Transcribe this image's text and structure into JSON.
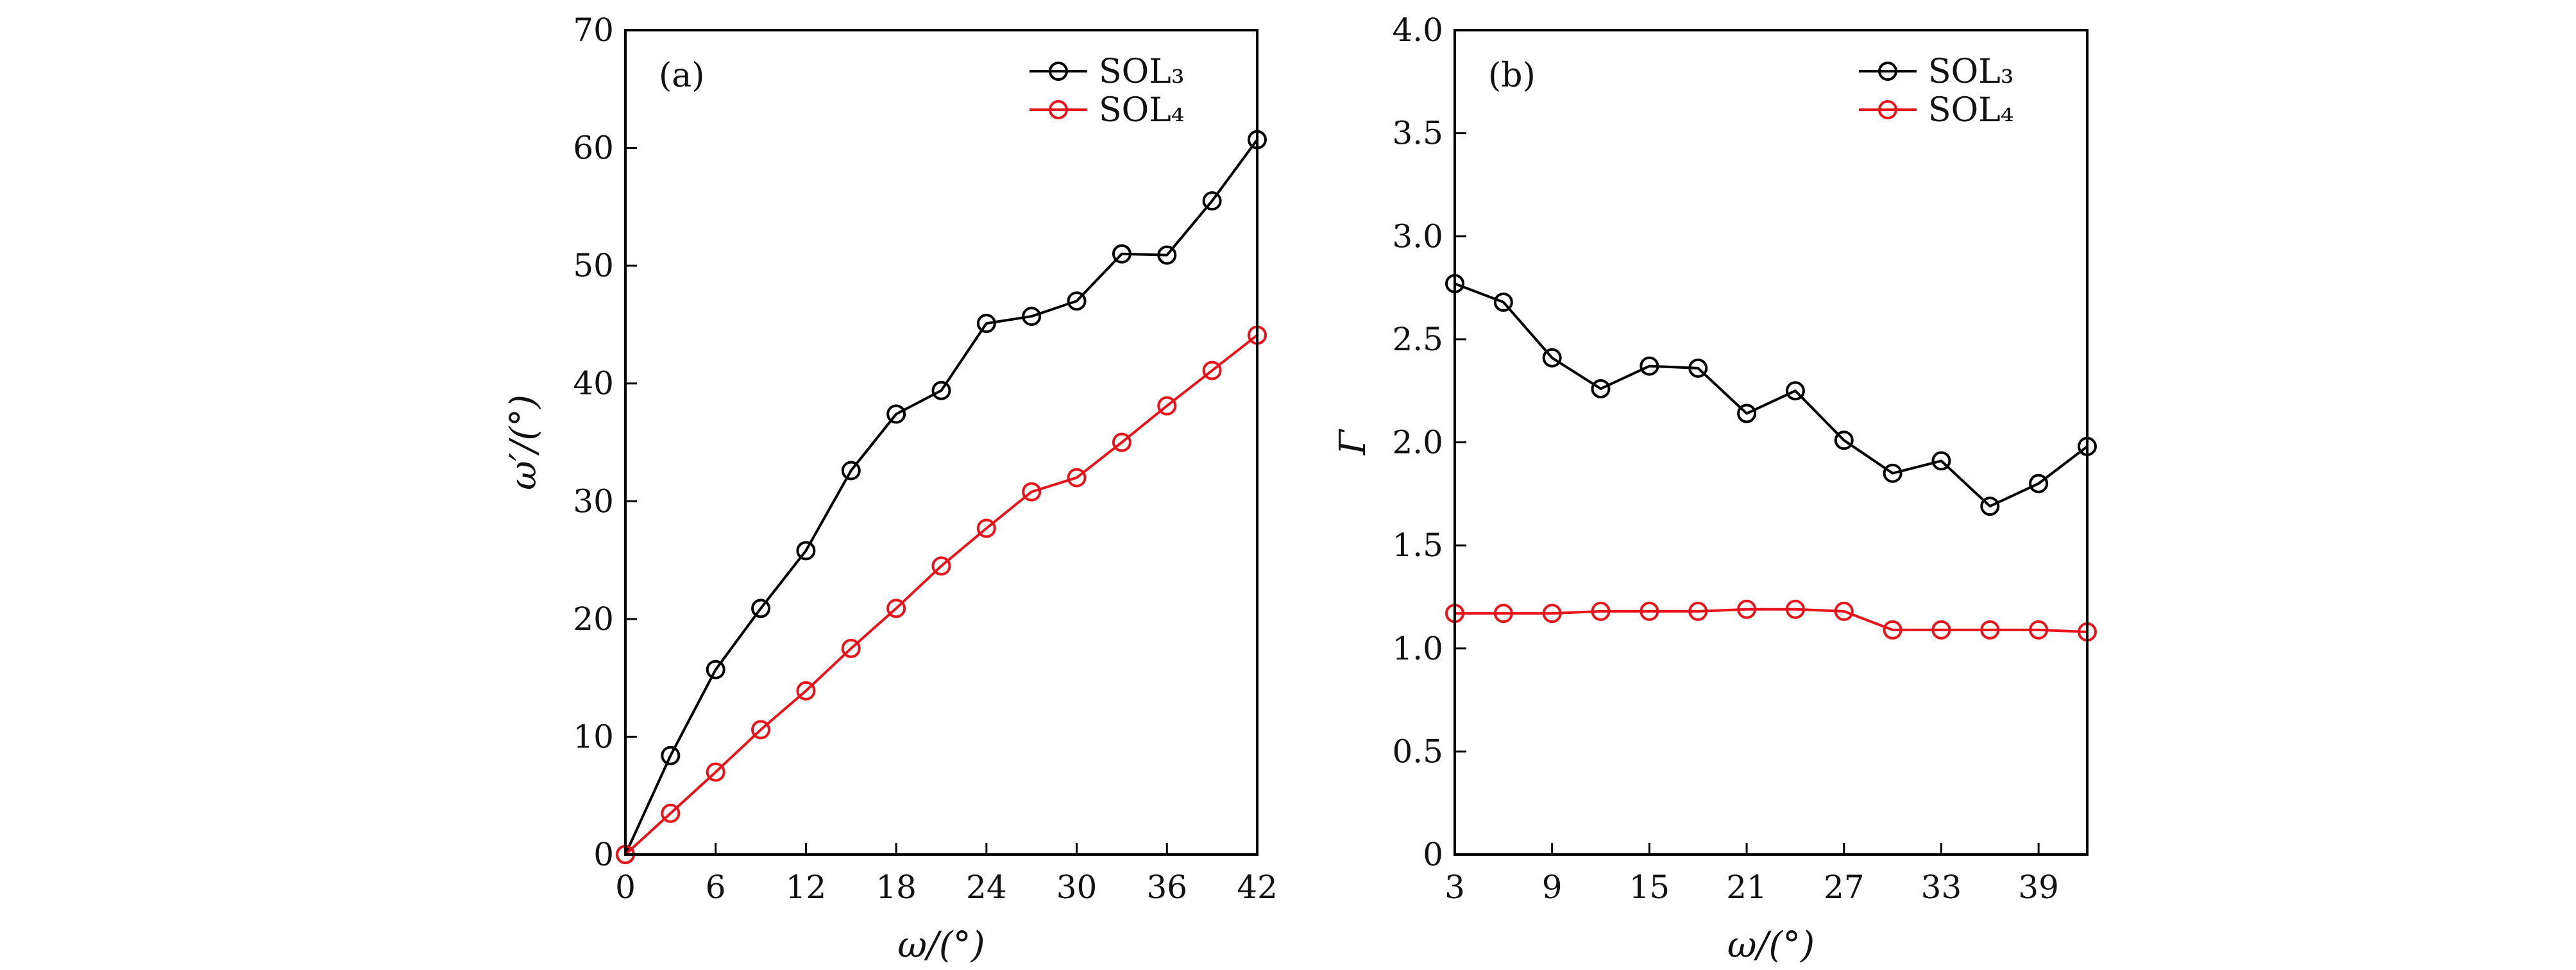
{
  "figure": {
    "title": ""
  },
  "chart_data": [
    {
      "type": "line",
      "panel": "(a)",
      "xlabel": "ω/(°)",
      "ylabel": "ω′/(°)",
      "xlim": [
        0,
        42
      ],
      "ylim": [
        0,
        70
      ],
      "xticks": [
        "0",
        "6",
        "12",
        "18",
        "24",
        "30",
        "36",
        "42"
      ],
      "yticks": [
        "0",
        "10",
        "20",
        "30",
        "40",
        "50",
        "60",
        "70"
      ],
      "legend_position": "top-right",
      "series": [
        {
          "name": "SOL₃",
          "color": "#000000",
          "x": [
            0,
            3,
            6,
            9,
            12,
            15,
            18,
            21,
            24,
            27,
            30,
            33,
            36,
            39,
            42
          ],
          "values": [
            0,
            8.4,
            15.7,
            20.9,
            25.8,
            32.6,
            37.4,
            39.4,
            45.1,
            45.7,
            47.0,
            51.0,
            50.9,
            55.5,
            60.7
          ]
        },
        {
          "name": "SOL₄",
          "color": "#e8141b",
          "x": [
            0,
            3,
            6,
            9,
            12,
            15,
            18,
            21,
            24,
            27,
            30,
            33,
            36,
            39,
            42
          ],
          "values": [
            0,
            3.5,
            7.0,
            10.6,
            13.9,
            17.5,
            20.9,
            24.5,
            27.7,
            30.8,
            32.0,
            35.0,
            38.1,
            41.1,
            44.1
          ]
        }
      ]
    },
    {
      "type": "line",
      "panel": "(b)",
      "xlabel": "ω/(°)",
      "ylabel": "Γ",
      "xlim": [
        3,
        42
      ],
      "ylim": [
        0,
        4.0
      ],
      "xticks": [
        "3",
        "9",
        "15",
        "21",
        "27",
        "33",
        "39"
      ],
      "yticks": [
        "0",
        "0.5",
        "1.0",
        "1.5",
        "2.0",
        "2.5",
        "3.0",
        "3.5",
        "4.0"
      ],
      "legend_position": "top-right",
      "series": [
        {
          "name": "SOL₃",
          "color": "#000000",
          "x": [
            3,
            6,
            9,
            12,
            15,
            18,
            21,
            24,
            27,
            30,
            33,
            36,
            39,
            42
          ],
          "values": [
            2.77,
            2.68,
            2.41,
            2.26,
            2.37,
            2.36,
            2.14,
            2.25,
            2.01,
            1.85,
            1.91,
            1.69,
            1.8,
            1.98
          ]
        },
        {
          "name": "SOL₄",
          "color": "#e8141b",
          "x": [
            3,
            6,
            9,
            12,
            15,
            18,
            21,
            24,
            27,
            30,
            33,
            36,
            39,
            42
          ],
          "values": [
            1.17,
            1.17,
            1.17,
            1.18,
            1.18,
            1.18,
            1.19,
            1.19,
            1.18,
            1.09,
            1.09,
            1.09,
            1.09,
            1.08
          ]
        }
      ]
    }
  ]
}
